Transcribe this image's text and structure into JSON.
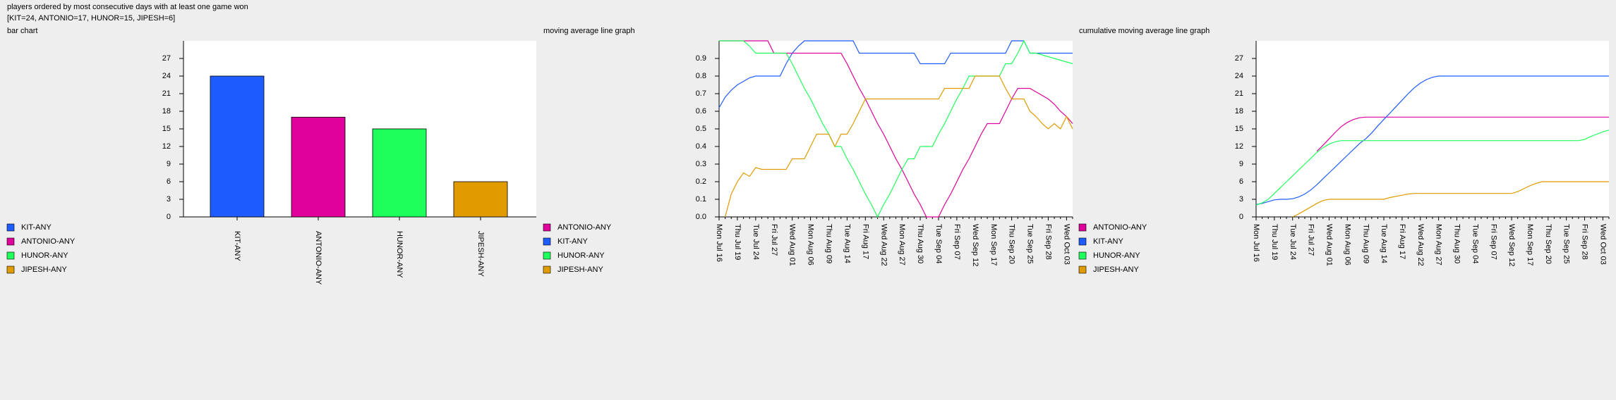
{
  "header": {
    "title": "players ordered by most consecutive days with at least one game won",
    "summary": "[KIT=24, ANTONIO=17, HUNOR=15, JIPESH=6]"
  },
  "chart_data": [
    {
      "type": "bar",
      "title": "bar chart",
      "categories": [
        "KIT-ANY",
        "ANTONIO-ANY",
        "HUNOR-ANY",
        "JIPESH-ANY"
      ],
      "values": [
        24,
        17,
        15,
        6
      ],
      "colors": [
        "#1f5cff",
        "#e0009b",
        "#1fff5c",
        "#e09b00"
      ],
      "ylim": [
        0,
        30
      ],
      "yticks": [
        0,
        3,
        6,
        9,
        12,
        15,
        18,
        21,
        24,
        27
      ],
      "legend": "bottom-left"
    },
    {
      "type": "line",
      "title": "moving average line graph",
      "categories": [
        "Mon Jul 16",
        null,
        null,
        "Thu Jul 19",
        null,
        null,
        "Tue Jul 24",
        null,
        null,
        "Fri Jul 27",
        null,
        null,
        "Wed Aug 01",
        null,
        null,
        "Mon Aug 06",
        null,
        null,
        "Thu Aug 09",
        null,
        null,
        "Tue Aug 14",
        null,
        null,
        "Fri Aug 17",
        null,
        null,
        "Wed Aug 22",
        null,
        null,
        "Mon Aug 27",
        null,
        null,
        "Thu Aug 30",
        null,
        null,
        "Tue Sep 04",
        null,
        null,
        "Fri Sep 07",
        null,
        null,
        "Wed Sep 12",
        null,
        null,
        "Mon Sep 17",
        null,
        null,
        "Thu Sep 20",
        null,
        null,
        "Tue Sep 25",
        null,
        null,
        "Fri Sep 28",
        null,
        null,
        "Wed Oct 03",
        null
      ],
      "series": [
        {
          "name": "ANTONIO-ANY",
          "color": "#e0009b",
          "values": [
            1,
            1,
            1,
            1,
            1,
            1,
            1,
            1,
            1,
            0.93,
            0.93,
            0.93,
            0.93,
            0.93,
            0.93,
            0.93,
            0.93,
            0.93,
            0.93,
            0.93,
            0.93,
            0.87,
            0.8,
            0.73,
            0.67,
            0.6,
            0.53,
            0.47,
            0.4,
            0.33,
            0.27,
            0.2,
            0.13,
            0.07,
            0,
            0,
            0,
            0.07,
            0.13,
            0.2,
            0.27,
            0.33,
            0.4,
            0.47,
            0.53,
            0.53,
            0.53,
            0.6,
            0.67,
            0.73,
            0.73,
            0.73,
            0.71,
            0.69,
            0.67,
            0.64,
            0.6,
            0.57,
            0.53
          ]
        },
        {
          "name": "KIT-ANY",
          "color": "#1f5cff",
          "values": [
            0.62,
            0.68,
            0.72,
            0.75,
            0.77,
            0.79,
            0.8,
            0.8,
            0.8,
            0.8,
            0.8,
            0.87,
            0.93,
            0.97,
            1,
            1,
            1,
            1,
            1,
            1,
            1,
            1,
            1,
            0.93,
            0.93,
            0.93,
            0.93,
            0.93,
            0.93,
            0.93,
            0.93,
            0.93,
            0.93,
            0.87,
            0.87,
            0.87,
            0.87,
            0.87,
            0.93,
            0.93,
            0.93,
            0.93,
            0.93,
            0.93,
            0.93,
            0.93,
            0.93,
            0.93,
            1,
            1,
            1,
            0.93,
            0.93,
            0.93,
            0.93,
            0.93,
            0.93,
            0.93,
            0.93
          ]
        },
        {
          "name": "HUNOR-ANY",
          "color": "#1fff5c",
          "values": [
            1,
            1,
            1,
            1,
            1,
            0.97,
            0.93,
            0.93,
            0.93,
            0.93,
            0.93,
            0.93,
            0.87,
            0.8,
            0.73,
            0.67,
            0.6,
            0.53,
            0.47,
            0.4,
            0.4,
            0.33,
            0.27,
            0.2,
            0.13,
            0.07,
            0,
            0.07,
            0.13,
            0.2,
            0.27,
            0.33,
            0.33,
            0.4,
            0.4,
            0.4,
            0.47,
            0.53,
            0.6,
            0.67,
            0.73,
            0.8,
            0.8,
            0.8,
            0.8,
            0.8,
            0.8,
            0.87,
            0.87,
            0.93,
            1,
            0.93,
            0.93,
            0.92,
            0.91,
            0.9,
            0.89,
            0.88,
            0.87
          ]
        },
        {
          "name": "JIPESH-ANY",
          "color": "#e09b00",
          "values": [
            null,
            0,
            0.13,
            0.2,
            0.25,
            0.23,
            0.28,
            0.27,
            0.27,
            0.27,
            0.27,
            0.27,
            0.33,
            0.33,
            0.33,
            0.4,
            0.47,
            0.47,
            0.47,
            0.4,
            0.47,
            0.47,
            0.53,
            0.6,
            0.67,
            0.67,
            0.67,
            0.67,
            0.67,
            0.67,
            0.67,
            0.67,
            0.67,
            0.67,
            0.67,
            0.67,
            0.67,
            0.73,
            0.73,
            0.73,
            0.73,
            0.73,
            0.8,
            0.8,
            0.8,
            0.8,
            0.8,
            0.73,
            0.67,
            0.67,
            0.67,
            0.6,
            0.57,
            0.53,
            0.5,
            0.53,
            0.5,
            0.57,
            0.5
          ]
        }
      ],
      "ylim": [
        0,
        1
      ],
      "yticks": [
        {
          "value": 0,
          "label": "0.0"
        },
        0.1,
        0.2,
        0.3,
        0.4,
        0.5,
        0.6,
        0.7,
        0.8,
        0.9
      ],
      "legend": "bottom-left"
    },
    {
      "type": "line",
      "title": "cumulative moving average line graph",
      "categories": [
        "Mon Jul 16",
        null,
        null,
        "Thu Jul 19",
        null,
        null,
        "Tue Jul 24",
        null,
        null,
        "Fri Jul 27",
        null,
        null,
        "Wed Aug 01",
        null,
        null,
        "Mon Aug 06",
        null,
        null,
        "Thu Aug 09",
        null,
        null,
        "Tue Aug 14",
        null,
        null,
        "Fri Aug 17",
        null,
        null,
        "Wed Aug 22",
        null,
        null,
        "Mon Aug 27",
        null,
        null,
        "Thu Aug 30",
        null,
        null,
        "Tue Sep 04",
        null,
        null,
        "Fri Sep 07",
        null,
        null,
        "Wed Sep 12",
        null,
        null,
        "Mon Sep 17",
        null,
        null,
        "Thu Sep 20",
        null,
        null,
        "Tue Sep 25",
        null,
        null,
        "Fri Sep 28",
        null,
        null,
        "Wed Oct 03",
        null
      ],
      "series": [
        {
          "name": "ANTONIO-ANY",
          "color": "#e0009b",
          "values": [
            null,
            null,
            null,
            null,
            null,
            null,
            null,
            null,
            null,
            null,
            11.2,
            12.2,
            13.3,
            14.4,
            15.4,
            16.1,
            16.6,
            16.9,
            17,
            17,
            17,
            17,
            17,
            17,
            17,
            17,
            17,
            17,
            17,
            17,
            17,
            17,
            17,
            17,
            17,
            17,
            17,
            17,
            17,
            17,
            17,
            17,
            17,
            17,
            17,
            17,
            17,
            17,
            17,
            17,
            17,
            17,
            17,
            17,
            17,
            17,
            17,
            17,
            17
          ]
        },
        {
          "name": "KIT-ANY",
          "color": "#1f5cff",
          "values": [
            2.1,
            2.3,
            2.6,
            2.9,
            3,
            3,
            3.1,
            3.4,
            3.9,
            4.6,
            5.5,
            6.5,
            7.5,
            8.5,
            9.5,
            10.5,
            11.5,
            12.5,
            13.3,
            14.3,
            15.5,
            16.6,
            17.7,
            18.8,
            19.9,
            21,
            22,
            22.8,
            23.4,
            23.8,
            24,
            24,
            24,
            24,
            24,
            24,
            24,
            24,
            24,
            24,
            24,
            24,
            24,
            24,
            24,
            24,
            24,
            24,
            24,
            24,
            24,
            24,
            24,
            24,
            24,
            24,
            24,
            24,
            24
          ]
        },
        {
          "name": "HUNOR-ANY",
          "color": "#1fff5c",
          "values": [
            2,
            2.4,
            3,
            4,
            5,
            6,
            7,
            8,
            9,
            10,
            11,
            11.8,
            12.4,
            12.8,
            13,
            13,
            13,
            13,
            13,
            13,
            13,
            13,
            13,
            13,
            13,
            13,
            13,
            13,
            13,
            13,
            13,
            13,
            13,
            13,
            13,
            13,
            13,
            13,
            13,
            13,
            13,
            13,
            13,
            13,
            13,
            13,
            13,
            13,
            13,
            13,
            13,
            13,
            13,
            13,
            13.2,
            13.7,
            14.1,
            14.5,
            14.8
          ]
        },
        {
          "name": "JIPESH-ANY",
          "color": "#e09b00",
          "values": [
            null,
            null,
            null,
            null,
            null,
            null,
            0,
            0.5,
            1.1,
            1.7,
            2.3,
            2.8,
            3,
            3,
            3,
            3,
            3,
            3,
            3,
            3,
            3,
            3,
            3.3,
            3.5,
            3.7,
            3.9,
            4,
            4,
            4,
            4,
            4,
            4,
            4,
            4,
            4,
            4,
            4,
            4,
            4,
            4,
            4,
            4,
            4,
            4.3,
            4.8,
            5.3,
            5.7,
            6,
            6,
            6,
            6,
            6,
            6,
            6,
            6,
            6,
            6,
            6,
            6
          ]
        }
      ],
      "ylim": [
        0,
        30
      ],
      "yticks": [
        0,
        3,
        6,
        9,
        12,
        15,
        18,
        21,
        24,
        27
      ],
      "legend": "bottom-left"
    }
  ]
}
